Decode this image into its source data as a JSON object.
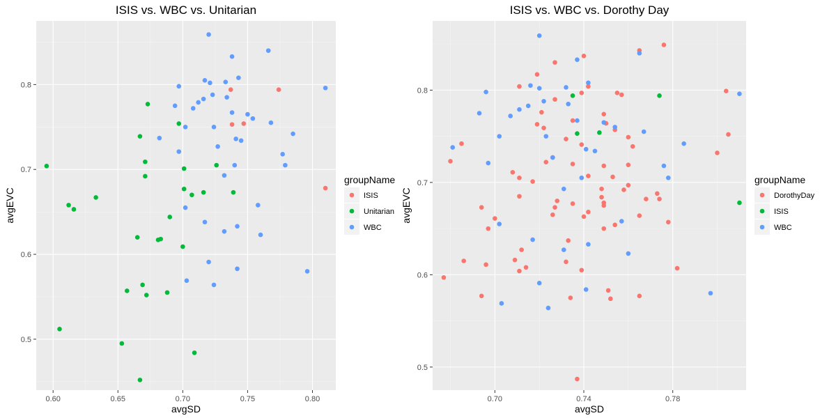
{
  "chart_data": [
    {
      "type": "scatter",
      "title": "ISIS vs. WBC vs. Unitarian",
      "xlabel": "avgSD",
      "ylabel": "avgEVC",
      "xlim": [
        0.587,
        0.818
      ],
      "ylim": [
        0.44,
        0.875
      ],
      "xticks": [
        0.6,
        0.65,
        0.7,
        0.75,
        0.8
      ],
      "xtick_labels": [
        "0.60",
        "0.65",
        "0.70",
        "0.75",
        "0.80"
      ],
      "yticks": [
        0.5,
        0.6,
        0.7,
        0.8
      ],
      "ytick_labels": [
        "0.5",
        "0.6",
        "0.7",
        "0.8"
      ],
      "grid": true,
      "legend": {
        "title": "groupName",
        "position": "right"
      },
      "series": [
        {
          "name": "ISIS",
          "color": "#F8766D",
          "points": [
            [
              0.737,
              0.794
            ],
            [
              0.774,
              0.794
            ],
            [
              0.738,
              0.753
            ],
            [
              0.747,
              0.754
            ],
            [
              0.81,
              0.678
            ]
          ]
        },
        {
          "name": "Unitarian",
          "color": "#00BA38",
          "points": [
            [
              0.595,
              0.704
            ],
            [
              0.605,
              0.512
            ],
            [
              0.612,
              0.658
            ],
            [
              0.616,
              0.653
            ],
            [
              0.633,
              0.667
            ],
            [
              0.653,
              0.495
            ],
            [
              0.657,
              0.557
            ],
            [
              0.665,
              0.62
            ],
            [
              0.667,
              0.739
            ],
            [
              0.667,
              0.452
            ],
            [
              0.669,
              0.564
            ],
            [
              0.671,
              0.709
            ],
            [
              0.671,
              0.692
            ],
            [
              0.672,
              0.552
            ],
            [
              0.673,
              0.777
            ],
            [
              0.681,
              0.617
            ],
            [
              0.683,
              0.618
            ],
            [
              0.688,
              0.555
            ],
            [
              0.69,
              0.644
            ],
            [
              0.697,
              0.754
            ],
            [
              0.7,
              0.609
            ],
            [
              0.701,
              0.677
            ],
            [
              0.701,
              0.701
            ],
            [
              0.707,
              0.67
            ],
            [
              0.709,
              0.484
            ],
            [
              0.716,
              0.673
            ],
            [
              0.726,
              0.705
            ],
            [
              0.739,
              0.673
            ]
          ]
        },
        {
          "name": "WBC",
          "color": "#619CFF",
          "points": [
            [
              0.72,
              0.859
            ],
            [
              0.766,
              0.84
            ],
            [
              0.738,
              0.833
            ],
            [
              0.743,
              0.808
            ],
            [
              0.717,
              0.805
            ],
            [
              0.721,
              0.802
            ],
            [
              0.733,
              0.803
            ],
            [
              0.697,
              0.798
            ],
            [
              0.81,
              0.796
            ],
            [
              0.723,
              0.788
            ],
            [
              0.734,
              0.785
            ],
            [
              0.712,
              0.779
            ],
            [
              0.694,
              0.775
            ],
            [
              0.716,
              0.783
            ],
            [
              0.708,
              0.772
            ],
            [
              0.738,
              0.767
            ],
            [
              0.75,
              0.765
            ],
            [
              0.754,
              0.76
            ],
            [
              0.768,
              0.755
            ],
            [
              0.702,
              0.75
            ],
            [
              0.724,
              0.75
            ],
            [
              0.785,
              0.742
            ],
            [
              0.682,
              0.737
            ],
            [
              0.741,
              0.736
            ],
            [
              0.745,
              0.734
            ],
            [
              0.727,
              0.727
            ],
            [
              0.697,
              0.721
            ],
            [
              0.777,
              0.718
            ],
            [
              0.779,
              0.705
            ],
            [
              0.74,
              0.705
            ],
            [
              0.732,
              0.693
            ],
            [
              0.702,
              0.655
            ],
            [
              0.758,
              0.658
            ],
            [
              0.717,
              0.638
            ],
            [
              0.742,
              0.633
            ],
            [
              0.732,
              0.627
            ],
            [
              0.76,
              0.623
            ],
            [
              0.72,
              0.591
            ],
            [
              0.742,
              0.583
            ],
            [
              0.796,
              0.58
            ],
            [
              0.703,
              0.569
            ],
            [
              0.724,
              0.564
            ]
          ]
        }
      ]
    },
    {
      "type": "scatter",
      "title": "ISIS vs. WBC vs. Dorothy Day",
      "xlabel": "avgSD",
      "ylabel": "avgEVC",
      "xlim": [
        0.672,
        0.813
      ],
      "ylim": [
        0.475,
        0.875
      ],
      "xticks": [
        0.7,
        0.74,
        0.78
      ],
      "xtick_labels": [
        "0.70",
        "0.74",
        "0.78"
      ],
      "yticks": [
        0.5,
        0.6,
        0.7,
        0.8
      ],
      "ytick_labels": [
        "0.5",
        "0.6",
        "0.7",
        "0.8"
      ],
      "grid": true,
      "legend": {
        "title": "groupName",
        "position": "right"
      },
      "series": [
        {
          "name": "DorothyDay",
          "color": "#F8766D",
          "points": [
            [
              0.776,
              0.849
            ],
            [
              0.765,
              0.843
            ],
            [
              0.74,
              0.837
            ],
            [
              0.727,
              0.83
            ],
            [
              0.719,
              0.817
            ],
            [
              0.711,
              0.804
            ],
            [
              0.742,
              0.804
            ],
            [
              0.804,
              0.799
            ],
            [
              0.755,
              0.797
            ],
            [
              0.739,
              0.797
            ],
            [
              0.757,
              0.795
            ],
            [
              0.727,
              0.79
            ],
            [
              0.749,
              0.774
            ],
            [
              0.721,
              0.776
            ],
            [
              0.735,
              0.767
            ],
            [
              0.75,
              0.764
            ],
            [
              0.719,
              0.763
            ],
            [
              0.722,
              0.759
            ],
            [
              0.754,
              0.757
            ],
            [
              0.805,
              0.752
            ],
            [
              0.76,
              0.749
            ],
            [
              0.732,
              0.747
            ],
            [
              0.685,
              0.742
            ],
            [
              0.739,
              0.741
            ],
            [
              0.762,
              0.739
            ],
            [
              0.8,
              0.732
            ],
            [
              0.726,
              0.727
            ],
            [
              0.723,
              0.722
            ],
            [
              0.68,
              0.723
            ],
            [
              0.76,
              0.719
            ],
            [
              0.749,
              0.718
            ],
            [
              0.735,
              0.72
            ],
            [
              0.708,
              0.711
            ],
            [
              0.742,
              0.707
            ],
            [
              0.717,
              0.701
            ],
            [
              0.753,
              0.706
            ],
            [
              0.711,
              0.705
            ],
            [
              0.76,
              0.697
            ],
            [
              0.758,
              0.692
            ],
            [
              0.748,
              0.693
            ],
            [
              0.773,
              0.688
            ],
            [
              0.768,
              0.682
            ],
            [
              0.774,
              0.682
            ],
            [
              0.748,
              0.684
            ],
            [
              0.711,
              0.685
            ],
            [
              0.728,
              0.68
            ],
            [
              0.749,
              0.675
            ],
            [
              0.749,
              0.678
            ],
            [
              0.735,
              0.677
            ],
            [
              0.727,
              0.673
            ],
            [
              0.694,
              0.673
            ],
            [
              0.742,
              0.668
            ],
            [
              0.765,
              0.664
            ],
            [
              0.74,
              0.663
            ],
            [
              0.726,
              0.665
            ],
            [
              0.7,
              0.661
            ],
            [
              0.778,
              0.657
            ],
            [
              0.754,
              0.654
            ],
            [
              0.749,
              0.65
            ],
            [
              0.697,
              0.65
            ],
            [
              0.733,
              0.637
            ],
            [
              0.712,
              0.627
            ],
            [
              0.686,
              0.615
            ],
            [
              0.709,
              0.616
            ],
            [
              0.732,
              0.614
            ],
            [
              0.696,
              0.611
            ],
            [
              0.714,
              0.608
            ],
            [
              0.739,
              0.605
            ],
            [
              0.782,
              0.607
            ],
            [
              0.711,
              0.604
            ],
            [
              0.677,
              0.597
            ],
            [
              0.751,
              0.583
            ],
            [
              0.694,
              0.577
            ],
            [
              0.765,
              0.577
            ],
            [
              0.734,
              0.575
            ],
            [
              0.752,
              0.574
            ],
            [
              0.737,
              0.487
            ]
          ]
        },
        {
          "name": "ISIS",
          "color": "#00BA38",
          "points": [
            [
              0.774,
              0.794
            ],
            [
              0.735,
              0.794
            ],
            [
              0.737,
              0.753
            ],
            [
              0.747,
              0.754
            ],
            [
              0.81,
              0.678
            ]
          ]
        },
        {
          "name": "WBC",
          "color": "#619CFF",
          "points": [
            [
              0.72,
              0.859
            ],
            [
              0.765,
              0.84
            ],
            [
              0.737,
              0.833
            ],
            [
              0.742,
              0.808
            ],
            [
              0.716,
              0.805
            ],
            [
              0.72,
              0.802
            ],
            [
              0.732,
              0.803
            ],
            [
              0.696,
              0.798
            ],
            [
              0.81,
              0.796
            ],
            [
              0.722,
              0.788
            ],
            [
              0.733,
              0.785
            ],
            [
              0.711,
              0.779
            ],
            [
              0.693,
              0.775
            ],
            [
              0.715,
              0.783
            ],
            [
              0.707,
              0.772
            ],
            [
              0.737,
              0.767
            ],
            [
              0.749,
              0.765
            ],
            [
              0.754,
              0.76
            ],
            [
              0.767,
              0.755
            ],
            [
              0.702,
              0.75
            ],
            [
              0.723,
              0.75
            ],
            [
              0.785,
              0.742
            ],
            [
              0.681,
              0.738
            ],
            [
              0.741,
              0.736
            ],
            [
              0.745,
              0.734
            ],
            [
              0.726,
              0.727
            ],
            [
              0.697,
              0.721
            ],
            [
              0.776,
              0.718
            ],
            [
              0.778,
              0.705
            ],
            [
              0.739,
              0.705
            ],
            [
              0.731,
              0.693
            ],
            [
              0.702,
              0.655
            ],
            [
              0.757,
              0.658
            ],
            [
              0.717,
              0.638
            ],
            [
              0.742,
              0.633
            ],
            [
              0.731,
              0.627
            ],
            [
              0.76,
              0.623
            ],
            [
              0.72,
              0.591
            ],
            [
              0.741,
              0.584
            ],
            [
              0.797,
              0.58
            ],
            [
              0.703,
              0.569
            ],
            [
              0.724,
              0.564
            ]
          ]
        }
      ]
    }
  ]
}
